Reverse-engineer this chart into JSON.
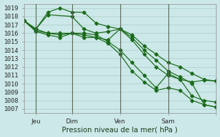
{
  "bg_color": "#cce8e8",
  "grid_color": "#aacccc",
  "line_color": "#1a6b1a",
  "marker_color": "#1a6b1a",
  "xlabel": "Pression niveau de la mer( hPa )",
  "ylabel_ticks": [
    1007,
    1008,
    1009,
    1010,
    1011,
    1012,
    1013,
    1014,
    1015,
    1016,
    1017,
    1018,
    1019
  ],
  "ylim": [
    1006.5,
    1019.5
  ],
  "xlim": [
    0,
    96
  ],
  "xtick_positions": [
    6,
    24,
    48,
    72,
    96
  ],
  "xtick_labels": [
    "Jeu",
    "Dim",
    "Ven",
    "Sam",
    ""
  ],
  "xtick_major_positions": [
    6,
    24,
    48,
    72
  ],
  "series1_x": [
    0,
    6,
    12,
    18,
    24,
    30,
    36,
    42,
    48,
    54,
    60,
    66,
    72,
    78,
    84,
    90,
    96
  ],
  "series1_y": [
    1017.5,
    1016.5,
    1016.0,
    1016.0,
    1016.0,
    1015.8,
    1015.5,
    1015.2,
    1016.5,
    1015.8,
    1014.5,
    1013.5,
    1012.5,
    1012.0,
    1011.2,
    1010.5,
    1010.3
  ],
  "series2_x": [
    0,
    6,
    12,
    18,
    24,
    30,
    36,
    42,
    48,
    54,
    60,
    66,
    72,
    78,
    84,
    90,
    96
  ],
  "series2_y": [
    1017.5,
    1016.3,
    1016.0,
    1015.8,
    1016.0,
    1016.0,
    1015.8,
    1015.0,
    1014.0,
    1012.5,
    1011.0,
    1009.5,
    1011.2,
    1010.5,
    1010.2,
    1010.4,
    1010.3
  ],
  "series3_x": [
    0,
    6,
    12,
    18,
    24,
    30,
    36,
    42,
    48,
    54,
    60,
    66,
    72,
    78,
    84,
    90,
    96
  ],
  "series3_y": [
    1017.5,
    1016.2,
    1015.8,
    1015.5,
    1016.0,
    1015.5,
    1015.5,
    1014.8,
    1013.5,
    1011.5,
    1010.2,
    1009.2,
    1009.5,
    1009.2,
    1008.0,
    1007.5,
    1007.2
  ],
  "series4_x": [
    0,
    6,
    12,
    18,
    24,
    30,
    36,
    42,
    48,
    54,
    60,
    66,
    72,
    78,
    84,
    90,
    96
  ],
  "series4_y": [
    1017.5,
    1016.5,
    1018.5,
    1019.0,
    1018.5,
    1018.5,
    1017.2,
    1016.8,
    1016.5,
    1015.2,
    1013.5,
    1012.0,
    1011.0,
    1010.5,
    1008.5,
    1008.0,
    1007.8
  ],
  "series5_x": [
    0,
    6,
    12,
    24,
    30,
    36,
    42,
    48,
    54,
    60,
    66,
    72,
    78,
    84,
    90,
    96
  ],
  "series5_y": [
    1017.5,
    1016.5,
    1018.2,
    1018.0,
    1016.5,
    1016.0,
    1016.2,
    1016.5,
    1015.5,
    1014.0,
    1012.8,
    1011.5,
    1010.8,
    1010.0,
    1007.5,
    1007.2
  ],
  "font_size_label": 7.5,
  "font_size_tick": 6.5
}
